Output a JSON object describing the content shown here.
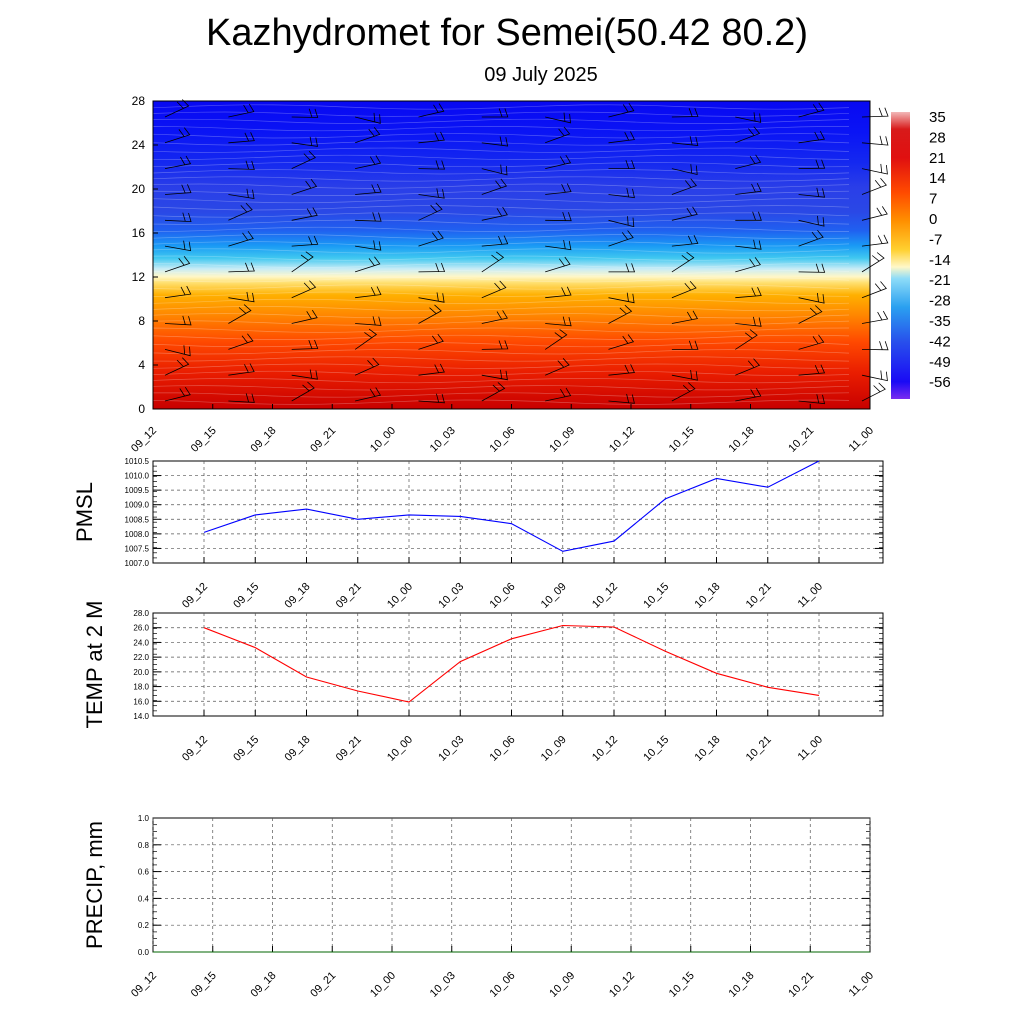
{
  "title": "Kazhydromet for Semei(50.42 80.2)",
  "subtitle": "09 July 2025",
  "colors": {
    "pmsl_line": "#0000ff",
    "temp_line": "#ff0000",
    "precip_line": "#006400",
    "grid": "#555555"
  },
  "chart_data": [
    {
      "type": "heatmap",
      "ylim": [
        0,
        28
      ],
      "yticks": [
        "0",
        "4",
        "8",
        "12",
        "16",
        "20",
        "24",
        "28"
      ],
      "x": [
        "09_12",
        "09_15",
        "09_18",
        "09_21",
        "10_00",
        "10_03",
        "10_06",
        "10_09",
        "10_12",
        "10_15",
        "10_18",
        "10_21",
        "11_00"
      ],
      "colorbar": [
        "35",
        "28",
        "21",
        "14",
        "7",
        "0",
        "-7",
        "-14",
        "-21",
        "-28",
        "-35",
        "-42",
        "-49",
        "-56"
      ],
      "overlay": "wind barbs"
    },
    {
      "type": "line",
      "ylabel": "PMSL",
      "ylim": [
        1007.0,
        1010.5
      ],
      "yticks": [
        "1007.0",
        "1007.5",
        "1008.0",
        "1008.5",
        "1009.0",
        "1009.5",
        "1010.0",
        "1010.5"
      ],
      "x": [
        "09_12",
        "09_15",
        "09_18",
        "09_21",
        "10_00",
        "10_03",
        "10_06",
        "10_09",
        "10_12",
        "10_15",
        "10_18",
        "10_21",
        "11_00"
      ],
      "values": [
        1008.05,
        1008.65,
        1008.85,
        1008.5,
        1008.65,
        1008.6,
        1008.35,
        1007.4,
        1007.75,
        1009.2,
        1009.9,
        1009.6,
        1010.5
      ]
    },
    {
      "type": "line",
      "ylabel": "TEMP at 2 M",
      "ylim": [
        14.0,
        28.0
      ],
      "yticks": [
        "14.0",
        "16.0",
        "18.0",
        "20.0",
        "22.0",
        "24.0",
        "26.0",
        "28.0"
      ],
      "x": [
        "09_12",
        "09_15",
        "09_18",
        "09_21",
        "10_00",
        "10_03",
        "10_06",
        "10_09",
        "10_12",
        "10_15",
        "10_18",
        "10_21",
        "11_00"
      ],
      "values": [
        26.0,
        23.3,
        19.3,
        17.4,
        15.9,
        21.4,
        24.5,
        26.3,
        26.1,
        22.8,
        19.8,
        17.9,
        16.8
      ]
    },
    {
      "type": "line",
      "ylabel": "PRECIP, mm",
      "ylim": [
        0.0,
        1.0
      ],
      "yticks": [
        "0.0",
        "0.2",
        "0.4",
        "0.6",
        "0.8",
        "1.0"
      ],
      "x": [
        "09_12",
        "09_15",
        "09_18",
        "09_21",
        "10_00",
        "10_03",
        "10_06",
        "10_09",
        "10_12",
        "10_15",
        "10_18",
        "10_21",
        "11_00"
      ],
      "values": [
        0,
        0,
        0,
        0,
        0,
        0,
        0,
        0,
        0,
        0,
        0,
        0,
        0
      ]
    }
  ]
}
